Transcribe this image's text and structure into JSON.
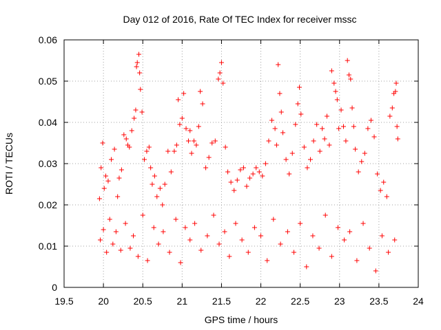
{
  "chart_data": {
    "type": "scatter",
    "title": "Day 012 of 2016, Rate Of TEC Index for receiver mssc",
    "xlabel": "GPS time / hours",
    "ylabel": "ROTI / TECUs",
    "xlim": [
      19.5,
      24
    ],
    "ylim": [
      0,
      0.06
    ],
    "x_ticks": [
      19.5,
      20,
      20.5,
      21,
      21.5,
      22,
      22.5,
      23,
      23.5,
      24
    ],
    "x_tick_labels": [
      "19.5",
      "20",
      "20.5",
      "21",
      "21.5",
      "22",
      "22.5",
      "23",
      "23.5",
      "24"
    ],
    "y_ticks": [
      0,
      0.01,
      0.02,
      0.03,
      0.04,
      0.05,
      0.06
    ],
    "y_tick_labels": [
      "0",
      "0.01",
      "0.02",
      "0.03",
      "0.04",
      "0.05",
      "0.06"
    ],
    "grid": true,
    "marker": "plus",
    "color": "#ff0000",
    "series": [
      {
        "name": "ROTI",
        "x": [
          19.95,
          19.97,
          19.99,
          20.01,
          20.03,
          20.06,
          20.1,
          20.14,
          20.18,
          20.2,
          20.23,
          20.26,
          20.29,
          20.31,
          20.33,
          20.36,
          20.39,
          20.41,
          20.42,
          20.43,
          20.45,
          20.46,
          20.47,
          20.49,
          20.52,
          20.55,
          20.58,
          20.6,
          20.62,
          20.65,
          20.68,
          20.72,
          20.75,
          20.78,
          20.82,
          20.86,
          20.9,
          20.93,
          20.95,
          20.97,
          21.0,
          21.02,
          21.05,
          21.08,
          21.1,
          21.12,
          21.15,
          21.18,
          21.21,
          21.23,
          21.26,
          21.3,
          21.34,
          21.38,
          21.42,
          21.46,
          21.48,
          21.5,
          21.52,
          21.55,
          21.58,
          21.62,
          21.66,
          21.7,
          21.74,
          21.78,
          21.82,
          21.86,
          21.9,
          21.94,
          21.98,
          22.02,
          22.06,
          22.1,
          22.14,
          22.18,
          22.2,
          22.22,
          22.24,
          22.26,
          22.28,
          22.32,
          22.36,
          22.4,
          22.44,
          22.47,
          22.49,
          22.51,
          22.55,
          22.59,
          22.63,
          22.67,
          22.71,
          22.75,
          22.78,
          22.81,
          22.84,
          22.87,
          22.9,
          22.93,
          22.95,
          22.97,
          22.99,
          23.02,
          23.05,
          23.08,
          23.1,
          23.12,
          23.14,
          23.16,
          23.18,
          23.2,
          23.24,
          23.28,
          23.32,
          23.36,
          23.4,
          23.44,
          23.48,
          23.52,
          23.56,
          23.6,
          23.64,
          23.67,
          23.69,
          23.71,
          23.72,
          23.73,
          23.74,
          19.96,
          20.0,
          20.04,
          20.08,
          20.12,
          20.16,
          20.22,
          20.28,
          20.34,
          20.38,
          20.44,
          20.5,
          20.56,
          20.64,
          20.7,
          20.76,
          20.84,
          20.92,
          20.98,
          21.04,
          21.1,
          21.16,
          21.24,
          21.32,
          21.4,
          21.47,
          21.54,
          21.6,
          21.68,
          21.76,
          21.84,
          21.92,
          22.0,
          22.08,
          22.16,
          22.25,
          22.34,
          22.42,
          22.5,
          22.58,
          22.66,
          22.74,
          22.82,
          22.9,
          22.98,
          23.06,
          23.13,
          23.22,
          23.3,
          23.38,
          23.46,
          23.54,
          23.62,
          23.7
        ],
        "y": [
          0.0215,
          0.029,
          0.035,
          0.024,
          0.027,
          0.0258,
          0.031,
          0.0335,
          0.022,
          0.0265,
          0.0285,
          0.037,
          0.036,
          0.0345,
          0.034,
          0.038,
          0.041,
          0.043,
          0.0535,
          0.0545,
          0.0565,
          0.052,
          0.048,
          0.0425,
          0.031,
          0.033,
          0.034,
          0.029,
          0.025,
          0.027,
          0.022,
          0.024,
          0.02,
          0.025,
          0.033,
          0.028,
          0.033,
          0.0345,
          0.0455,
          0.0395,
          0.041,
          0.047,
          0.0385,
          0.0355,
          0.038,
          0.0325,
          0.0355,
          0.0345,
          0.039,
          0.0475,
          0.0445,
          0.029,
          0.0315,
          0.035,
          0.0355,
          0.0505,
          0.052,
          0.0545,
          0.0495,
          0.034,
          0.028,
          0.0255,
          0.0235,
          0.026,
          0.0285,
          0.029,
          0.0245,
          0.0265,
          0.0275,
          0.029,
          0.028,
          0.027,
          0.03,
          0.0355,
          0.0405,
          0.0385,
          0.0345,
          0.054,
          0.047,
          0.0425,
          0.0375,
          0.031,
          0.0275,
          0.0325,
          0.0395,
          0.0445,
          0.0485,
          0.042,
          0.034,
          0.029,
          0.031,
          0.0355,
          0.0395,
          0.033,
          0.0385,
          0.036,
          0.0415,
          0.0345,
          0.0525,
          0.0495,
          0.0475,
          0.0455,
          0.0385,
          0.043,
          0.039,
          0.0355,
          0.055,
          0.0515,
          0.0505,
          0.0435,
          0.039,
          0.0335,
          0.028,
          0.0305,
          0.0325,
          0.0385,
          0.0405,
          0.0365,
          0.0275,
          0.0235,
          0.0255,
          0.022,
          0.0415,
          0.0435,
          0.047,
          0.0475,
          0.0495,
          0.039,
          0.036,
          0.0115,
          0.014,
          0.0085,
          0.0165,
          0.0105,
          0.0135,
          0.009,
          0.0155,
          0.0095,
          0.0125,
          0.0075,
          0.0175,
          0.0065,
          0.0145,
          0.0105,
          0.0135,
          0.0085,
          0.0165,
          0.006,
          0.0145,
          0.0115,
          0.0155,
          0.009,
          0.0125,
          0.0175,
          0.0105,
          0.0135,
          0.0075,
          0.0155,
          0.0115,
          0.0085,
          0.0145,
          0.0125,
          0.0065,
          0.0165,
          0.0105,
          0.0135,
          0.0085,
          0.0155,
          0.005,
          0.0125,
          0.0095,
          0.0175,
          0.0075,
          0.0145,
          0.0115,
          0.0135,
          0.0065,
          0.0155,
          0.0095,
          0.004,
          0.0125,
          0.0085,
          0.0115
        ]
      }
    ]
  }
}
